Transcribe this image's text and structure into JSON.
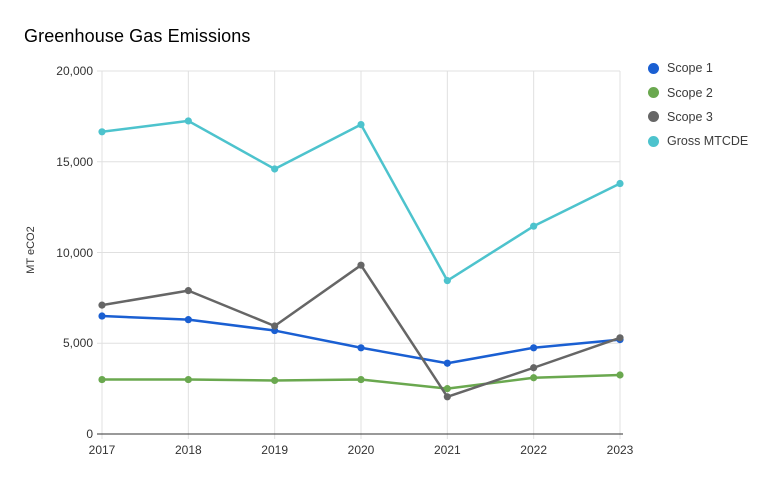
{
  "title": "Greenhouse Gas Emissions",
  "y_axis_title": "MT eCO2",
  "colors": {
    "grid": "#e0e0e0",
    "axis": "#333333",
    "background": "#ffffff",
    "title_text": "#000000",
    "tick_text": "#333333"
  },
  "chart_data": {
    "type": "line",
    "title": "Greenhouse Gas Emissions",
    "xlabel": "",
    "ylabel": "MT eCO2",
    "categories": [
      "2017",
      "2018",
      "2019",
      "2020",
      "2021",
      "2022",
      "2023"
    ],
    "series": [
      {
        "name": "Scope 1",
        "color": "#1a5fd2",
        "values": [
          6500,
          6300,
          5700,
          4750,
          3900,
          4750,
          5200
        ]
      },
      {
        "name": "Scope 2",
        "color": "#6aa84f",
        "values": [
          3000,
          3000,
          2950,
          3000,
          2500,
          3100,
          3250
        ]
      },
      {
        "name": "Scope 3",
        "color": "#666666",
        "values": [
          7100,
          7900,
          5950,
          9300,
          2050,
          3650,
          5300
        ]
      },
      {
        "name": "Gross MTCDE",
        "color": "#4dc3cd",
        "values": [
          16650,
          17250,
          14600,
          17050,
          8450,
          11450,
          13800
        ]
      }
    ],
    "ylim": [
      0,
      20000
    ],
    "y_ticks": [
      {
        "value": 0,
        "label": "0"
      },
      {
        "value": 5000,
        "label": "5,000"
      },
      {
        "value": 10000,
        "label": "10,000"
      },
      {
        "value": 15000,
        "label": "15,000"
      },
      {
        "value": 20000,
        "label": "20,000"
      }
    ],
    "grid": true,
    "legend_position": "right"
  }
}
